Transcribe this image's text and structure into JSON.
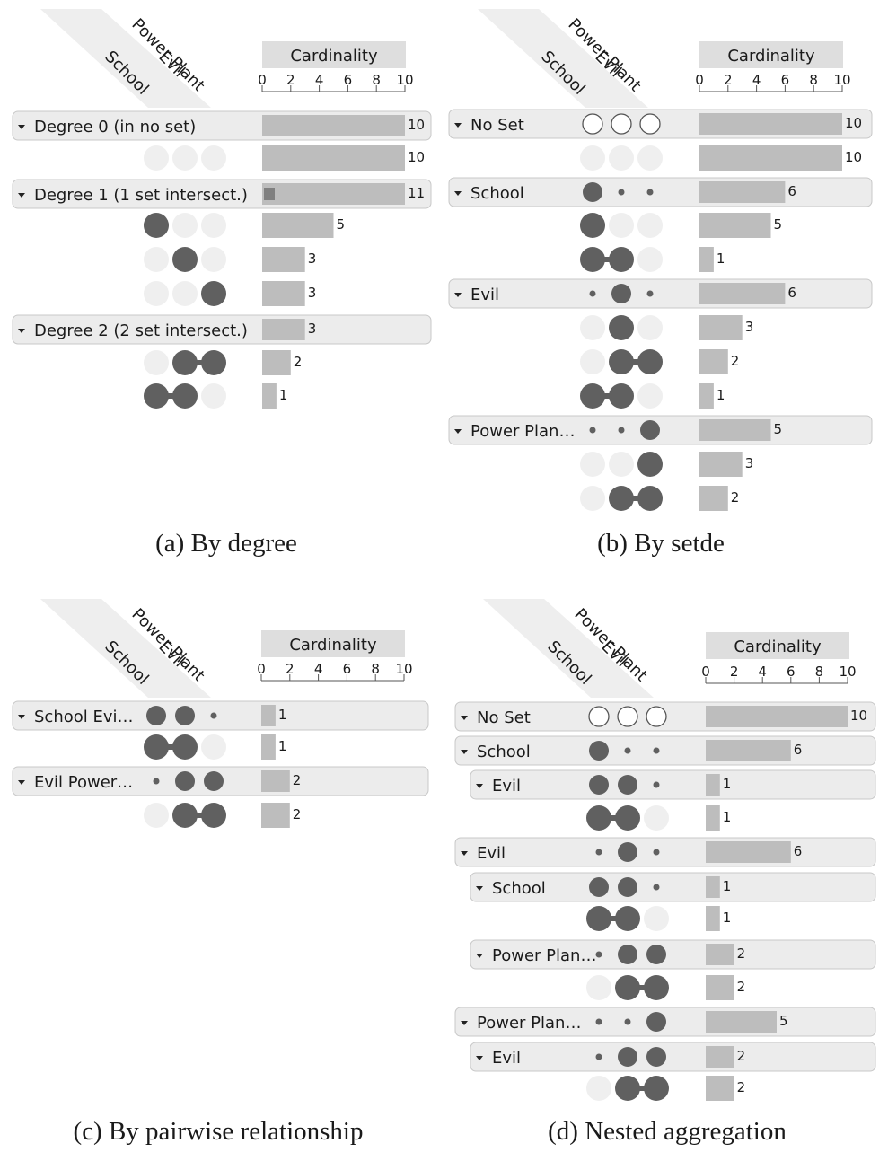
{
  "sets": [
    "School",
    "Evil",
    "Power Plant"
  ],
  "axis_title": "Cardinality",
  "axis_ticks": [
    "0",
    "2",
    "4",
    "6",
    "8",
    "10"
  ],
  "axis_max": 10,
  "colors": {
    "filled_dot": "#606060",
    "empty_dot": "#efefef",
    "bar": "#bdbdbd",
    "bar_dark": "#808080",
    "header_bg": "#ececec",
    "header_border": "#c8c8c8"
  },
  "panels": [
    {
      "id": "a",
      "caption": "(a)  By degree",
      "rows": [
        {
          "kind": "header",
          "label": "Degree 0 (in no set)",
          "value": 10
        },
        {
          "kind": "sub",
          "pattern": [
            0,
            0,
            0
          ],
          "value": 10
        },
        {
          "kind": "header",
          "label": "Degree 1 (1 set intersect.)",
          "value": 11,
          "inner": 0.9
        },
        {
          "kind": "sub",
          "pattern": [
            1,
            0,
            0
          ],
          "value": 5
        },
        {
          "kind": "sub",
          "pattern": [
            0,
            1,
            0
          ],
          "value": 3
        },
        {
          "kind": "sub",
          "pattern": [
            0,
            0,
            1
          ],
          "value": 3
        },
        {
          "kind": "header",
          "label": "Degree 2 (2 set intersect.)",
          "value": 3
        },
        {
          "kind": "sub",
          "pattern": [
            0,
            1,
            1
          ],
          "value": 2
        },
        {
          "kind": "sub",
          "pattern": [
            1,
            1,
            0
          ],
          "value": 1
        }
      ]
    },
    {
      "id": "b",
      "caption": "(b)  By setde",
      "rows": [
        {
          "kind": "header",
          "label": "No Set",
          "dots": "outline",
          "value": 10
        },
        {
          "kind": "sub",
          "pattern": [
            0,
            0,
            0
          ],
          "value": 10
        },
        {
          "kind": "header",
          "label": "School",
          "agg": [
            2,
            1,
            1
          ],
          "value": 6
        },
        {
          "kind": "sub",
          "pattern": [
            1,
            0,
            0
          ],
          "value": 5
        },
        {
          "kind": "sub",
          "pattern": [
            1,
            1,
            0
          ],
          "value": 1
        },
        {
          "kind": "header",
          "label": "Evil",
          "agg": [
            1,
            2,
            1
          ],
          "value": 6
        },
        {
          "kind": "sub",
          "pattern": [
            0,
            1,
            0
          ],
          "value": 3
        },
        {
          "kind": "sub",
          "pattern": [
            0,
            1,
            1
          ],
          "value": 2
        },
        {
          "kind": "sub",
          "pattern": [
            1,
            1,
            0
          ],
          "value": 1
        },
        {
          "kind": "header",
          "label": "Power Plan…",
          "agg": [
            1,
            1,
            2
          ],
          "value": 5
        },
        {
          "kind": "sub",
          "pattern": [
            0,
            0,
            1
          ],
          "value": 3
        },
        {
          "kind": "sub",
          "pattern": [
            0,
            1,
            1
          ],
          "value": 2
        }
      ]
    },
    {
      "id": "c",
      "caption": "(c)  By pairwise relationship",
      "rows": [
        {
          "kind": "header",
          "label": "School Evi…",
          "agg": [
            2,
            2,
            1
          ],
          "value": 1
        },
        {
          "kind": "sub",
          "pattern": [
            1,
            1,
            0
          ],
          "value": 1
        },
        {
          "kind": "header",
          "label": "Evil Power…",
          "agg": [
            1,
            2,
            2
          ],
          "value": 2
        },
        {
          "kind": "sub",
          "pattern": [
            0,
            1,
            1
          ],
          "value": 2
        }
      ]
    },
    {
      "id": "d",
      "caption": "(d)  Nested aggregation",
      "rows": [
        {
          "kind": "header",
          "label": "No Set",
          "dots": "outline",
          "value": 10
        },
        {
          "kind": "header",
          "label": "School",
          "agg": [
            2,
            1,
            1
          ],
          "value": 6
        },
        {
          "kind": "header",
          "level": 1,
          "label": "Evil",
          "agg": [
            2,
            2,
            1
          ],
          "value": 1
        },
        {
          "kind": "sub",
          "pattern": [
            1,
            1,
            0
          ],
          "value": 1
        },
        {
          "kind": "header",
          "label": "Evil",
          "agg": [
            1,
            2,
            1
          ],
          "value": 6
        },
        {
          "kind": "header",
          "level": 1,
          "label": "School",
          "agg": [
            2,
            2,
            1
          ],
          "value": 1
        },
        {
          "kind": "sub",
          "pattern": [
            1,
            1,
            0
          ],
          "value": 1
        },
        {
          "kind": "header",
          "level": 1,
          "label": "Power Plan…",
          "agg": [
            1,
            2,
            2
          ],
          "value": 2
        },
        {
          "kind": "sub",
          "pattern": [
            0,
            1,
            1
          ],
          "value": 2
        },
        {
          "kind": "header",
          "label": "Power Plan…",
          "agg": [
            1,
            1,
            2
          ],
          "value": 5
        },
        {
          "kind": "header",
          "level": 1,
          "label": "Evil",
          "agg": [
            1,
            2,
            2
          ],
          "value": 2
        },
        {
          "kind": "sub",
          "pattern": [
            0,
            1,
            1
          ],
          "value": 2
        }
      ]
    }
  ]
}
